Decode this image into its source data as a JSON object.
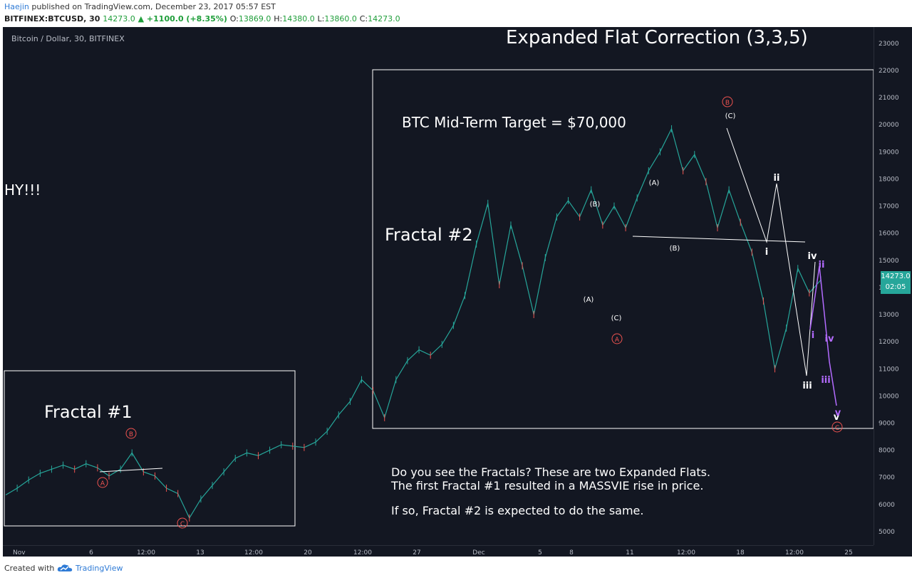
{
  "header": {
    "author": "Haejin",
    "published": "published on TradingView.com, December 23, 2017 05:57 EST",
    "symbol": "BITFINEX:BTCUSD, 30",
    "last": "14273.0",
    "change": "▲ +1100.0 (+8.35%)",
    "o_label": "O:",
    "o_value": "13869.0",
    "h_label": "H:",
    "h_value": "14380.0",
    "l_label": "L:",
    "l_value": "13860.0",
    "c_label": "C:",
    "c_value": "14273.0"
  },
  "chart": {
    "series_title": "Bitcoin / Dollar, 30, BITFINEX",
    "price_tag": "14273.0",
    "countdown": "02:05",
    "colors": {
      "background": "#131722",
      "up": "#26a69a",
      "down": "#ef5350",
      "wave": "#ffffff",
      "subwave": "#b36bff",
      "circle": "#ef5350"
    }
  },
  "annotations": {
    "title": "Expanded Flat Correction (3,3,5)",
    "target": "BTC Mid-Term Target = $70,000",
    "hy": "HY!!!",
    "fractal1": "Fractal #1",
    "fractal2": "Fractal #2",
    "note1": "Do you see the Fractals? These are two Expanded Flats.",
    "note2": "The first Fractal #1 resulted in a MASSVIE rise in price.",
    "note3": "If so, Fractal #2 is expected to do the same."
  },
  "wave_labels": {
    "f1_A": "A",
    "f1_B": "B",
    "f1_C": "C",
    "f2_A_circle": "A",
    "f2_B_circle": "B",
    "f2_C_circle": "C",
    "pA1": "(A)",
    "pB1": "(B)",
    "pC1": "(C)",
    "pA2": "(A)",
    "pB2": "(B)",
    "pC2": "(C)",
    "w_i": "i",
    "w_ii": "ii",
    "w_iii": "iii",
    "w_iv": "iv",
    "w_v": "v",
    "s_i": "i",
    "s_ii": "ii",
    "s_iii": "iii",
    "s_iv": "iv",
    "s_v": "v"
  },
  "footer": {
    "created": "Created with",
    "brand": "TradingView"
  },
  "chart_data": {
    "type": "line",
    "title": "Bitcoin / Dollar, 30, BITFINEX",
    "xlabel": "",
    "ylabel": "",
    "y_ticks": [
      5000,
      6000,
      7000,
      8000,
      9000,
      10000,
      11000,
      12000,
      13000,
      14000,
      15000,
      16000,
      17000,
      18000,
      19000,
      20000,
      21000,
      22000,
      23000
    ],
    "x_ticks": [
      "Nov",
      "6",
      "12:00",
      "13",
      "12:00",
      "20",
      "12:00",
      "27",
      "Dec",
      "5",
      "8",
      "11",
      "12:00",
      "18",
      "12:00",
      "25"
    ],
    "ylim": [
      4500,
      23600
    ],
    "grid": false,
    "series": [
      {
        "points": [
          [
            0,
            6350
          ],
          [
            1,
            6600
          ],
          [
            2,
            6900
          ],
          [
            3,
            7150
          ],
          [
            4,
            7300
          ],
          [
            5,
            7450
          ],
          [
            6,
            7300
          ],
          [
            7,
            7500
          ],
          [
            8,
            7350
          ],
          [
            9,
            7050
          ],
          [
            10,
            7300
          ],
          [
            11,
            7900
          ],
          [
            12,
            7200
          ],
          [
            13,
            7050
          ],
          [
            14,
            6600
          ],
          [
            15,
            6400
          ],
          [
            16,
            5500
          ],
          [
            17,
            6200
          ],
          [
            18,
            6700
          ],
          [
            19,
            7200
          ],
          [
            20,
            7700
          ],
          [
            21,
            7900
          ],
          [
            22,
            7800
          ],
          [
            23,
            8000
          ],
          [
            24,
            8200
          ],
          [
            25,
            8150
          ],
          [
            26,
            8100
          ],
          [
            27,
            8300
          ],
          [
            28,
            8700
          ],
          [
            29,
            9300
          ],
          [
            30,
            9800
          ],
          [
            31,
            10600
          ],
          [
            32,
            10200
          ],
          [
            33,
            9200
          ],
          [
            34,
            10600
          ],
          [
            35,
            11300
          ],
          [
            36,
            11700
          ],
          [
            37,
            11500
          ],
          [
            38,
            11900
          ],
          [
            39,
            12600
          ],
          [
            40,
            13700
          ],
          [
            41,
            15600
          ],
          [
            42,
            17100
          ],
          [
            43,
            14100
          ],
          [
            44,
            16300
          ],
          [
            45,
            14800
          ],
          [
            46,
            13000
          ],
          [
            47,
            15100
          ],
          [
            48,
            16600
          ],
          [
            49,
            17200
          ],
          [
            50,
            16600
          ],
          [
            51,
            17600
          ],
          [
            52,
            16300
          ],
          [
            53,
            17000
          ],
          [
            54,
            16200
          ],
          [
            55,
            17300
          ],
          [
            56,
            18300
          ],
          [
            57,
            19000
          ],
          [
            58,
            19850
          ],
          [
            59,
            18300
          ],
          [
            60,
            18900
          ],
          [
            61,
            17900
          ],
          [
            62,
            16200
          ],
          [
            63,
            17600
          ],
          [
            64,
            16400
          ],
          [
            65,
            15300
          ],
          [
            66,
            13500
          ],
          [
            67,
            11000
          ],
          [
            68,
            12500
          ],
          [
            69,
            14700
          ],
          [
            70,
            13800
          ],
          [
            71,
            14273
          ]
        ]
      }
    ]
  }
}
